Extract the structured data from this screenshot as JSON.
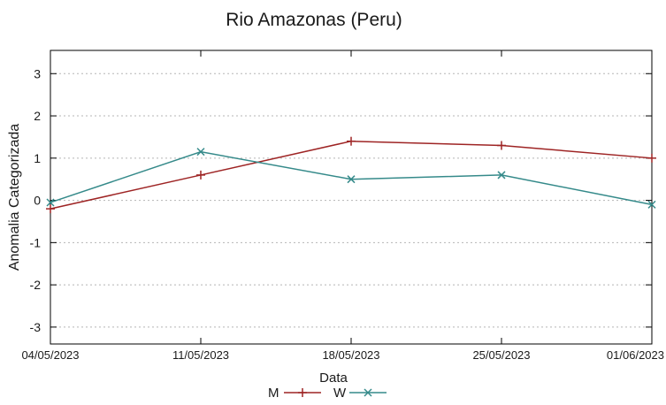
{
  "page": {
    "background": "#ffffff"
  },
  "chart_data": {
    "type": "line",
    "title": "Rio Amazonas (Peru)",
    "xlabel": "Data",
    "ylabel": "Anomalia Categorizada",
    "x_tick_labels": [
      "04/05/2023",
      "11/05/2023",
      "18/05/2023",
      "25/05/2023",
      "01/06/2023"
    ],
    "y_ticks": [
      -3,
      -2,
      -1,
      0,
      1,
      2,
      3
    ],
    "ylim": [
      -3.4,
      3.55
    ],
    "grid": "horizontal-dotted",
    "legend_position": "bottom-center",
    "series": [
      {
        "name": "M",
        "marker": "plus",
        "color": "#9e2424",
        "values": [
          -0.2,
          0.6,
          1.4,
          1.3,
          1.0
        ]
      },
      {
        "name": "W",
        "marker": "cross",
        "color": "#358a8a",
        "values": [
          -0.05,
          1.15,
          0.5,
          0.6,
          -0.1
        ]
      }
    ],
    "axis_color": "#000000",
    "grid_color": "#b5b5b5",
    "text_color": "#1a1a1a"
  }
}
